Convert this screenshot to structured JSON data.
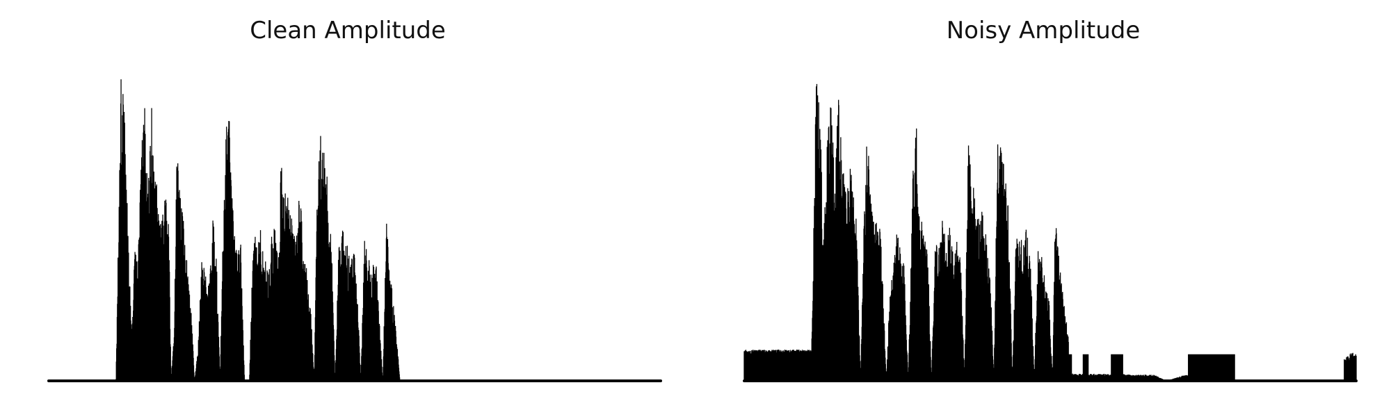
{
  "chart_data": [
    {
      "type": "area",
      "title": "Clean Amplitude",
      "xlabel": "",
      "ylabel": "",
      "ylim": [
        0,
        1
      ],
      "grid": false,
      "axes_visible": false,
      "color": "#000000",
      "active_range": [
        0.115,
        0.77
      ],
      "envelope": [
        [
          0.0,
          0.0
        ],
        [
          0.11,
          0.0
        ],
        [
          0.118,
          1.0
        ],
        [
          0.124,
          0.88
        ],
        [
          0.13,
          0.45
        ],
        [
          0.136,
          0.15
        ],
        [
          0.14,
          0.42
        ],
        [
          0.146,
          0.38
        ],
        [
          0.152,
          0.78
        ],
        [
          0.158,
          0.9
        ],
        [
          0.162,
          0.6
        ],
        [
          0.168,
          0.92
        ],
        [
          0.172,
          0.7
        ],
        [
          0.178,
          0.62
        ],
        [
          0.184,
          0.5
        ],
        [
          0.19,
          0.6
        ],
        [
          0.196,
          0.54
        ],
        [
          0.2,
          0.0
        ],
        [
          0.205,
          0.15
        ],
        [
          0.21,
          0.81
        ],
        [
          0.216,
          0.6
        ],
        [
          0.222,
          0.48
        ],
        [
          0.228,
          0.32
        ],
        [
          0.234,
          0.2
        ],
        [
          0.238,
          0.0
        ],
        [
          0.244,
          0.1
        ],
        [
          0.25,
          0.38
        ],
        [
          0.256,
          0.35
        ],
        [
          0.262,
          0.3
        ],
        [
          0.268,
          0.55
        ],
        [
          0.274,
          0.4
        ],
        [
          0.28,
          0.0
        ],
        [
          0.286,
          0.6
        ],
        [
          0.29,
          0.86
        ],
        [
          0.296,
          0.84
        ],
        [
          0.302,
          0.5
        ],
        [
          0.308,
          0.4
        ],
        [
          0.314,
          0.45
        ],
        [
          0.32,
          0.0
        ],
        [
          0.328,
          0.0
        ],
        [
          0.334,
          0.48
        ],
        [
          0.34,
          0.45
        ],
        [
          0.346,
          0.49
        ],
        [
          0.352,
          0.4
        ],
        [
          0.358,
          0.36
        ],
        [
          0.364,
          0.46
        ],
        [
          0.37,
          0.5
        ],
        [
          0.376,
          0.4
        ],
        [
          0.38,
          0.77
        ],
        [
          0.386,
          0.6
        ],
        [
          0.392,
          0.63
        ],
        [
          0.398,
          0.52
        ],
        [
          0.404,
          0.45
        ],
        [
          0.41,
          0.64
        ],
        [
          0.416,
          0.42
        ],
        [
          0.422,
          0.35
        ],
        [
          0.428,
          0.25
        ],
        [
          0.434,
          0.0
        ],
        [
          0.438,
          0.6
        ],
        [
          0.444,
          0.8
        ],
        [
          0.45,
          0.78
        ],
        [
          0.456,
          0.64
        ],
        [
          0.462,
          0.45
        ],
        [
          0.468,
          0.0
        ],
        [
          0.474,
          0.45
        ],
        [
          0.48,
          0.49
        ],
        [
          0.486,
          0.45
        ],
        [
          0.492,
          0.4
        ],
        [
          0.498,
          0.45
        ],
        [
          0.504,
          0.3
        ],
        [
          0.51,
          0.0
        ],
        [
          0.516,
          0.45
        ],
        [
          0.522,
          0.4
        ],
        [
          0.528,
          0.35
        ],
        [
          0.534,
          0.42
        ],
        [
          0.54,
          0.2
        ],
        [
          0.546,
          0.0
        ],
        [
          0.552,
          0.55
        ],
        [
          0.556,
          0.37
        ],
        [
          0.562,
          0.28
        ],
        [
          0.568,
          0.15
        ],
        [
          0.574,
          0.0
        ],
        [
          1.0,
          0.0
        ]
      ]
    },
    {
      "type": "area",
      "title": "Noisy Amplitude",
      "xlabel": "",
      "ylabel": "",
      "ylim": [
        0,
        1
      ],
      "grid": false,
      "axes_visible": false,
      "color": "#000000",
      "active_range": [
        0.0,
        1.0
      ],
      "envelope": [
        [
          0.0,
          0.1
        ],
        [
          0.11,
          0.1
        ],
        [
          0.118,
          1.0
        ],
        [
          0.124,
          0.85
        ],
        [
          0.13,
          0.45
        ],
        [
          0.136,
          0.8
        ],
        [
          0.142,
          0.92
        ],
        [
          0.148,
          0.7
        ],
        [
          0.154,
          0.95
        ],
        [
          0.16,
          0.75
        ],
        [
          0.166,
          0.6
        ],
        [
          0.172,
          0.7
        ],
        [
          0.178,
          0.62
        ],
        [
          0.184,
          0.5
        ],
        [
          0.19,
          0.0
        ],
        [
          0.196,
          0.55
        ],
        [
          0.202,
          0.86
        ],
        [
          0.208,
          0.55
        ],
        [
          0.214,
          0.5
        ],
        [
          0.22,
          0.56
        ],
        [
          0.226,
          0.35
        ],
        [
          0.232,
          0.0
        ],
        [
          0.238,
          0.28
        ],
        [
          0.244,
          0.38
        ],
        [
          0.25,
          0.5
        ],
        [
          0.256,
          0.42
        ],
        [
          0.262,
          0.36
        ],
        [
          0.268,
          0.0
        ],
        [
          0.276,
          0.7
        ],
        [
          0.282,
          0.84
        ],
        [
          0.288,
          0.55
        ],
        [
          0.294,
          0.46
        ],
        [
          0.3,
          0.43
        ],
        [
          0.306,
          0.0
        ],
        [
          0.312,
          0.45
        ],
        [
          0.318,
          0.42
        ],
        [
          0.324,
          0.52
        ],
        [
          0.33,
          0.44
        ],
        [
          0.336,
          0.5
        ],
        [
          0.342,
          0.4
        ],
        [
          0.348,
          0.45
        ],
        [
          0.354,
          0.38
        ],
        [
          0.36,
          0.0
        ],
        [
          0.366,
          0.77
        ],
        [
          0.372,
          0.68
        ],
        [
          0.378,
          0.6
        ],
        [
          0.384,
          0.52
        ],
        [
          0.39,
          0.55
        ],
        [
          0.396,
          0.45
        ],
        [
          0.402,
          0.35
        ],
        [
          0.408,
          0.0
        ],
        [
          0.414,
          0.78
        ],
        [
          0.42,
          0.8
        ],
        [
          0.426,
          0.7
        ],
        [
          0.432,
          0.55
        ],
        [
          0.438,
          0.0
        ],
        [
          0.444,
          0.45
        ],
        [
          0.45,
          0.47
        ],
        [
          0.456,
          0.45
        ],
        [
          0.462,
          0.5
        ],
        [
          0.468,
          0.4
        ],
        [
          0.474,
          0.0
        ],
        [
          0.48,
          0.45
        ],
        [
          0.486,
          0.42
        ],
        [
          0.492,
          0.32
        ],
        [
          0.498,
          0.28
        ],
        [
          0.504,
          0.0
        ],
        [
          0.508,
          0.56
        ],
        [
          0.514,
          0.4
        ],
        [
          0.52,
          0.3
        ],
        [
          0.526,
          0.2
        ],
        [
          0.532,
          0.1
        ],
        [
          0.54,
          0.09
        ],
        [
          0.55,
          0.09
        ],
        [
          0.56,
          0.09
        ],
        [
          0.57,
          0.09
        ],
        [
          0.58,
          0.09
        ],
        [
          0.59,
          0.09
        ],
        [
          0.6,
          0.09
        ],
        [
          0.615,
          0.09
        ],
        [
          0.63,
          0.08
        ],
        [
          0.65,
          0.08
        ],
        [
          0.67,
          0.08
        ],
        [
          0.69,
          0.0
        ],
        [
          0.72,
          0.08
        ],
        [
          0.75,
          0.06
        ],
        [
          0.78,
          0.03
        ],
        [
          0.8,
          0.0
        ],
        [
          0.82,
          0.0
        ],
        [
          0.84,
          0.0
        ],
        [
          0.86,
          0.0
        ],
        [
          0.88,
          0.0
        ],
        [
          0.9,
          0.0
        ],
        [
          0.92,
          0.0
        ],
        [
          0.99,
          0.09
        ],
        [
          1.0,
          0.09
        ]
      ]
    }
  ]
}
